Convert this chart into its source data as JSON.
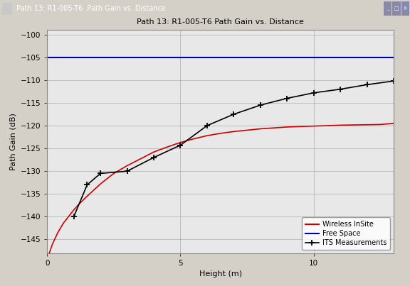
{
  "title": "Path 13: R1-005-T6 Path Gain vs. Distance",
  "xlabel": "Height (m)",
  "ylabel": "Path Gain (dB)",
  "xlim": [
    0,
    13
  ],
  "ylim": [
    -148,
    -99
  ],
  "yticks": [
    -145,
    -140,
    -135,
    -130,
    -125,
    -120,
    -115,
    -110,
    -105,
    -100
  ],
  "xticks": [
    0,
    5,
    10
  ],
  "free_space_y": -105,
  "wireless_insite_x": [
    0.05,
    0.2,
    0.4,
    0.6,
    0.8,
    1.0,
    1.2,
    1.5,
    2.0,
    2.5,
    3.0,
    3.5,
    4.0,
    4.5,
    5.0,
    5.5,
    6.0,
    6.5,
    7.0,
    7.5,
    8.0,
    8.5,
    9.0,
    9.5,
    10.0,
    10.5,
    11.0,
    11.5,
    12.0,
    12.5,
    13.0
  ],
  "wireless_insite_y": [
    -148.5,
    -146.0,
    -143.5,
    -141.5,
    -140.0,
    -138.5,
    -137.2,
    -135.5,
    -132.8,
    -130.5,
    -128.8,
    -127.3,
    -125.8,
    -124.7,
    -123.7,
    -122.9,
    -122.2,
    -121.7,
    -121.3,
    -121.0,
    -120.7,
    -120.5,
    -120.3,
    -120.2,
    -120.1,
    -120.0,
    -119.9,
    -119.85,
    -119.8,
    -119.75,
    -119.5
  ],
  "its_x": [
    1.0,
    1.5,
    2.0,
    3.0,
    4.0,
    5.0,
    6.0,
    7.0,
    8.0,
    9.0,
    10.0,
    11.0,
    12.0,
    13.0
  ],
  "its_y": [
    -140.0,
    -133.0,
    -130.5,
    -130.0,
    -127.0,
    -124.3,
    -120.0,
    -117.5,
    -115.5,
    -114.0,
    -112.8,
    -112.0,
    -111.0,
    -110.2
  ],
  "wireless_insite_color": "#cc0000",
  "free_space_color": "#0000aa",
  "its_color": "#000000",
  "outer_bg_color": "#d4d0c8",
  "plot_bg_color": "#e8e8e8",
  "grid_color": "#b0b8c0",
  "title_fontsize": 8,
  "axis_label_fontsize": 8,
  "tick_fontsize": 7.5,
  "legend_fontsize": 7
}
